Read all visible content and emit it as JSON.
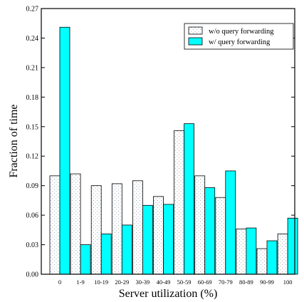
{
  "chart_data": {
    "type": "bar",
    "title": "",
    "xlabel": "Server utilization (%)",
    "ylabel": "Fraction of time",
    "ylim": [
      0,
      0.27
    ],
    "yticks": [
      "0.00",
      "0.03",
      "0.06",
      "0.09",
      "0.12",
      "0.15",
      "0.18",
      "0.21",
      "0.24",
      "0.27"
    ],
    "categories": [
      "0",
      "1-9",
      "10-19",
      "20-29",
      "30-39",
      "40-49",
      "50-59",
      "60-69",
      "70-79",
      "80-89",
      "90-99",
      "100"
    ],
    "legend_position": "top-right",
    "grid": false,
    "series": [
      {
        "name": "w/o query forwarding",
        "color": "#ffffff",
        "pattern": "dotted",
        "values": [
          0.1,
          0.102,
          0.09,
          0.092,
          0.095,
          0.079,
          0.146,
          0.1,
          0.078,
          0.046,
          0.026,
          0.041
        ]
      },
      {
        "name": "w/ query forwarding",
        "color": "#00ffff",
        "pattern": "solid",
        "values": [
          0.251,
          0.03,
          0.041,
          0.05,
          0.07,
          0.071,
          0.153,
          0.088,
          0.105,
          0.047,
          0.034,
          0.057
        ]
      }
    ]
  }
}
